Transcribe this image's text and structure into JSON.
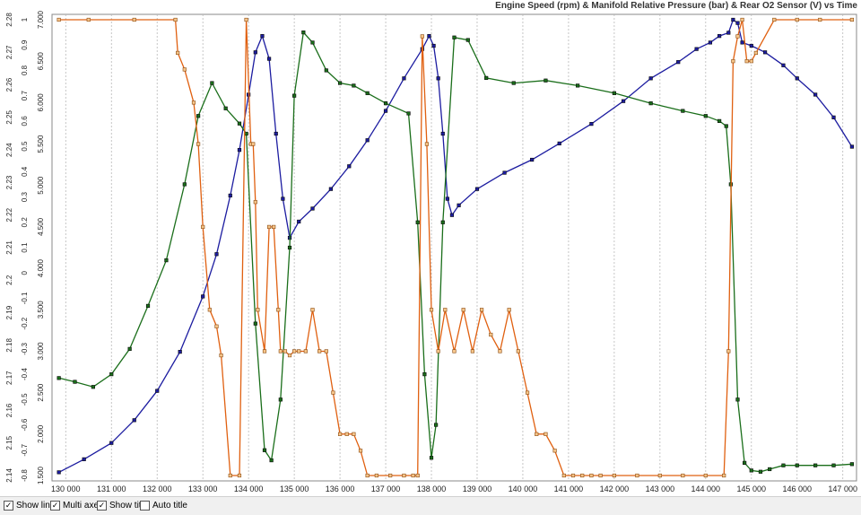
{
  "chart_data": {
    "type": "line",
    "title": "Engine Speed (rpm) & Manifold Relative Pressure (bar) & Rear O2 Sensor (V) vs Time",
    "grid": true,
    "xlim": [
      129700,
      147300
    ],
    "x_ticks": [
      "130 000",
      "131 000",
      "132 000",
      "133 000",
      "134 000",
      "135 000",
      "136 000",
      "137 000",
      "138 000",
      "139 000",
      "140 000",
      "141 000",
      "142 000",
      "143 000",
      "144 000",
      "145 000",
      "146 000",
      "147 000"
    ],
    "axes": [
      {
        "name": "o2",
        "ylim": [
          2.14,
          2.28
        ],
        "ticks": [
          "2.28",
          "2.27",
          "2.26",
          "2.25",
          "2.24",
          "2.23",
          "2.22",
          "2.21",
          "2.2",
          "2.19",
          "2.18",
          "2.17",
          "2.16",
          "2.15",
          "2.14"
        ]
      },
      {
        "name": "pressure",
        "ylim": [
          -0.8,
          1.0
        ],
        "ticks": [
          "1",
          "0.9",
          "0.8",
          "0.7",
          "0.6",
          "0.5",
          "0.4",
          "0.3",
          "0.2",
          "0.1",
          "0",
          "-0.1",
          "-0.2",
          "-0.3",
          "-0.4",
          "-0.5",
          "-0.6",
          "-0.7",
          "-0.8"
        ]
      },
      {
        "name": "rpm",
        "ylim": [
          1500,
          7000
        ],
        "ticks": [
          "7.000",
          "6.500",
          "6.000",
          "5.500",
          "5.000",
          "4.500",
          "4.000",
          "3.500",
          "3.000",
          "2.500",
          "2.000",
          "1.500"
        ]
      }
    ],
    "series": [
      {
        "color": "#1c1ca0",
        "axis": "o2",
        "x": [
          129850,
          130400,
          131000,
          131500,
          132000,
          132500,
          133000,
          133300,
          133600,
          133800,
          134000,
          134150,
          134300,
          134450,
          134600,
          134750,
          134900,
          135100,
          135400,
          135800,
          136200,
          136600,
          137000,
          137400,
          137800,
          137950,
          138050,
          138150,
          138250,
          138350,
          138450,
          138600,
          139000,
          139600,
          140200,
          140800,
          141500,
          142200,
          142800,
          143400,
          143800,
          144100,
          144300,
          144500,
          144600,
          144700,
          144800,
          145000,
          145300,
          145700,
          146000,
          146400,
          146800,
          147200
        ],
        "y": [
          2.141,
          2.145,
          2.15,
          2.157,
          2.166,
          2.178,
          2.195,
          2.208,
          2.226,
          2.24,
          2.257,
          2.27,
          2.275,
          2.268,
          2.245,
          2.225,
          2.213,
          2.218,
          2.222,
          2.228,
          2.235,
          2.243,
          2.252,
          2.262,
          2.271,
          2.275,
          2.272,
          2.262,
          2.245,
          2.225,
          2.22,
          2.223,
          2.228,
          2.233,
          2.237,
          2.242,
          2.248,
          2.255,
          2.262,
          2.267,
          2.271,
          2.273,
          2.275,
          2.276,
          2.28,
          2.279,
          2.273,
          2.272,
          2.27,
          2.266,
          2.262,
          2.257,
          2.25,
          2.241
        ]
      },
      {
        "color": "#1a6e1a",
        "axis": "pressure",
        "x": [
          129850,
          130200,
          130600,
          131000,
          131400,
          131800,
          132200,
          132600,
          132900,
          133200,
          133500,
          133800,
          133950,
          134150,
          134350,
          134500,
          134700,
          134900,
          135000,
          135200,
          135400,
          135700,
          136000,
          136300,
          136600,
          137000,
          137500,
          137700,
          137850,
          138000,
          138100,
          138250,
          138500,
          138800,
          139200,
          139800,
          140500,
          141200,
          142000,
          142800,
          143500,
          144000,
          144300,
          144450,
          144550,
          144700,
          144850,
          145000,
          145200,
          145400,
          145700,
          146000,
          146400,
          146800,
          147200
        ],
        "y": [
          -0.415,
          -0.43,
          -0.45,
          -0.4,
          -0.3,
          -0.13,
          0.05,
          0.35,
          0.62,
          0.75,
          0.65,
          0.59,
          0.55,
          -0.2,
          -0.7,
          -0.74,
          -0.5,
          0.1,
          0.7,
          0.95,
          0.91,
          0.8,
          0.75,
          0.74,
          0.71,
          0.67,
          0.63,
          0.2,
          -0.4,
          -0.73,
          -0.6,
          0.2,
          0.93,
          0.92,
          0.77,
          0.75,
          0.76,
          0.74,
          0.71,
          0.67,
          0.64,
          0.62,
          0.6,
          0.58,
          0.35,
          -0.5,
          -0.75,
          -0.78,
          -0.785,
          -0.775,
          -0.76,
          -0.76,
          -0.76,
          -0.76,
          -0.755
        ]
      },
      {
        "color": "#e06010",
        "axis": "rpm",
        "x": [
          129850,
          130500,
          131500,
          132400,
          132450,
          132600,
          132800,
          132900,
          133000,
          133150,
          133300,
          133400,
          133600,
          133800,
          133950,
          134050,
          134100,
          134150,
          134200,
          134350,
          134450,
          134550,
          134650,
          134700,
          134800,
          134900,
          135000,
          135100,
          135250,
          135400,
          135550,
          135700,
          135850,
          136000,
          136150,
          136300,
          136450,
          136600,
          136800,
          137100,
          137400,
          137600,
          137700,
          137800,
          137900,
          138000,
          138150,
          138300,
          138500,
          138700,
          138900,
          139100,
          139300,
          139500,
          139700,
          139900,
          140100,
          140300,
          140500,
          140700,
          140900,
          141100,
          141300,
          141500,
          141700,
          142000,
          142500,
          143000,
          143500,
          144000,
          144400,
          144500,
          144600,
          144700,
          144800,
          144900,
          145000,
          145100,
          145500,
          146000,
          146500,
          147200
        ],
        "y": [
          7000,
          7000,
          7000,
          7000,
          6600,
          6400,
          6000,
          5500,
          4500,
          3500,
          3300,
          2950,
          1500,
          1500,
          7000,
          5500,
          5500,
          4800,
          3500,
          3000,
          4500,
          4500,
          3500,
          3000,
          3000,
          2950,
          3000,
          3000,
          3000,
          3500,
          3000,
          3000,
          2500,
          2000,
          2000,
          2000,
          1800,
          1500,
          1500,
          1500,
          1500,
          1500,
          1500,
          6800,
          5500,
          3500,
          3000,
          3500,
          3000,
          3500,
          3000,
          3500,
          3200,
          3000,
          3500,
          3000,
          2500,
          2000,
          2000,
          1800,
          1500,
          1500,
          1500,
          1500,
          1500,
          1500,
          1500,
          1500,
          1500,
          1500,
          1500,
          3000,
          6500,
          6800,
          7000,
          6500,
          6500,
          6600,
          7000,
          7000,
          7000,
          7000
        ]
      }
    ]
  },
  "toolbar": {
    "options": [
      {
        "label": "Show lines",
        "checked": true
      },
      {
        "label": "Multi axes",
        "checked": true
      },
      {
        "label": "Show title",
        "checked": true
      },
      {
        "label": "Auto title",
        "checked": false
      }
    ]
  }
}
